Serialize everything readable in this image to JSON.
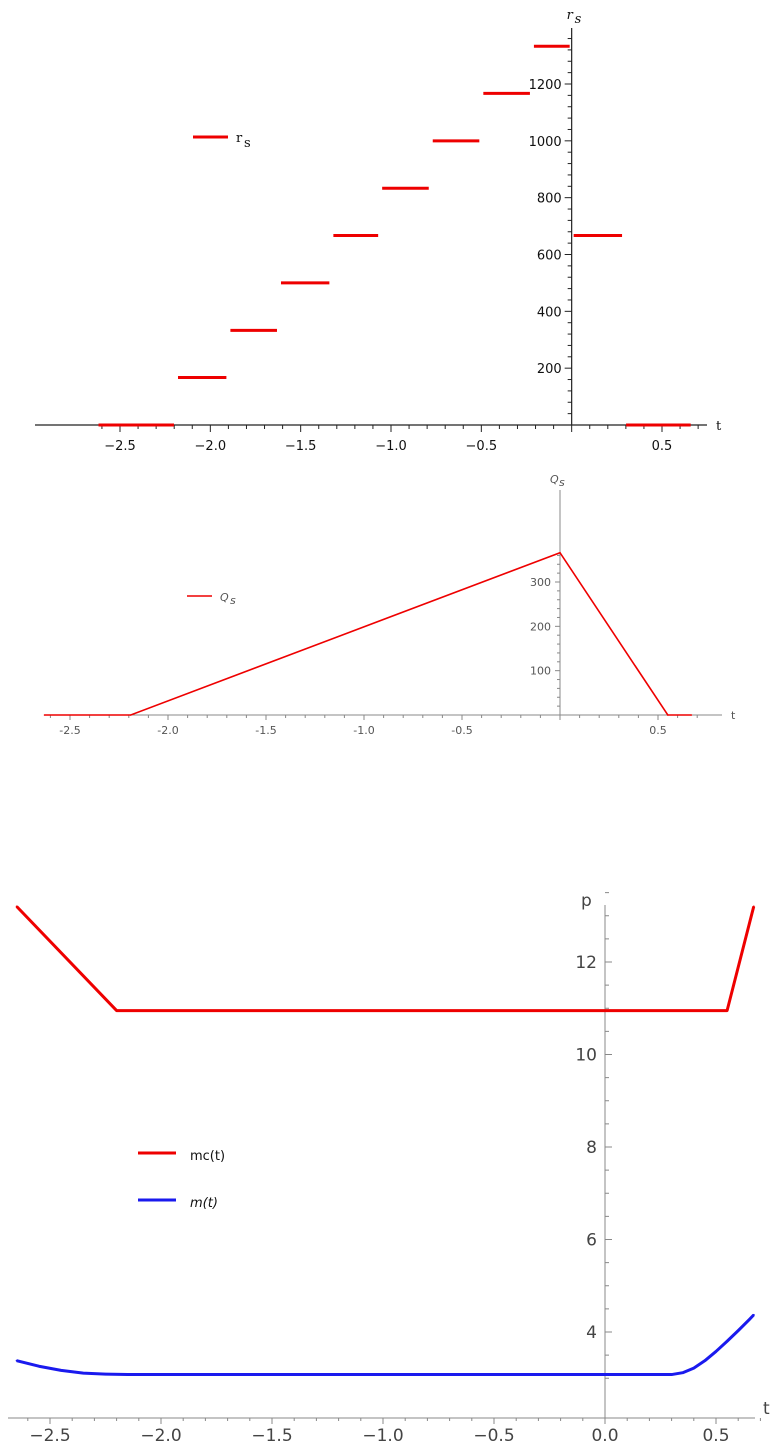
{
  "chart_data": [
    {
      "type": "line",
      "style": "step",
      "xlabel": "t",
      "ylabel": "r",
      "ylabel_sub": "s",
      "legend": [
        {
          "name": "r",
          "sub": "s",
          "color": "#ee0000"
        }
      ],
      "legend_placement": "top-left",
      "xlim": [
        -2.65,
        0.72
      ],
      "ylim": [
        0,
        1380
      ],
      "x_ticks": [
        -2.5,
        -2.0,
        -1.5,
        -1.0,
        -0.5,
        0.5
      ],
      "x_tick_labels": [
        "−2.5",
        "−2.0",
        "−1.5",
        "−1.0",
        "−0.5",
        "0.5"
      ],
      "y_ticks": [
        200,
        400,
        600,
        800,
        1000,
        1200
      ],
      "y_tick_labels": [
        "200",
        "400",
        "600",
        "800",
        "1000",
        "1200"
      ],
      "series": [
        {
          "color": "#ee0000",
          "segments": [
            {
              "x0": -2.63,
              "x1": -2.19,
              "y": 0
            },
            {
              "x0": -2.19,
              "x1": -1.9,
              "y": 167
            },
            {
              "x0": -1.9,
              "x1": -1.62,
              "y": 333
            },
            {
              "x0": -1.62,
              "x1": -1.33,
              "y": 500
            },
            {
              "x0": -1.33,
              "x1": -1.06,
              "y": 667
            },
            {
              "x0": -1.06,
              "x1": -0.78,
              "y": 833
            },
            {
              "x0": -0.78,
              "x1": -0.5,
              "y": 1000
            },
            {
              "x0": -0.5,
              "x1": -0.22,
              "y": 1167
            },
            {
              "x0": -0.22,
              "x1": 0.0,
              "y": 1333
            },
            {
              "x0": 0.0,
              "x1": 0.29,
              "y": 667
            },
            {
              "x0": 0.29,
              "x1": 0.67,
              "y": 0
            }
          ]
        }
      ]
    },
    {
      "type": "line",
      "xlabel": "t",
      "ylabel": "Q",
      "ylabel_sub": "s",
      "legend": [
        {
          "name": "Q",
          "sub": "s",
          "color": "#ee0000"
        }
      ],
      "legend_placement": "top-left",
      "xlim": [
        -2.72,
        0.78
      ],
      "ylim": [
        0,
        380
      ],
      "x_ticks": [
        -2.5,
        -2.0,
        -1.5,
        -1.0,
        -0.5,
        0.5
      ],
      "x_tick_labels": [
        "-2.5",
        "-2.0",
        "-1.5",
        "-1.0",
        "-0.5",
        "0.5"
      ],
      "y_ticks": [
        100,
        200,
        300
      ],
      "y_tick_labels": [
        "100",
        "200",
        "300"
      ],
      "series": [
        {
          "color": "#ee0000",
          "x": [
            -2.63,
            -2.19,
            0.0,
            0.55,
            0.67
          ],
          "y": [
            0,
            0,
            366,
            0,
            0
          ]
        }
      ]
    },
    {
      "type": "line",
      "xlabel": "t",
      "ylabel": "p",
      "legend": [
        {
          "name": "mc(t)",
          "color": "#ee0000"
        },
        {
          "name": "m(t)",
          "color": "#1a1aee"
        }
      ],
      "legend_placement": "center-left",
      "xlim": [
        -2.65,
        0.72
      ],
      "ylim": [
        2.75,
        13.6
      ],
      "x_ticks": [
        -2.5,
        -2.0,
        -1.5,
        -1.0,
        -0.5,
        0.0,
        0.5
      ],
      "x_tick_labels": [
        "−2.5",
        "−2.0",
        "−1.5",
        "−1.0",
        "−0.5",
        "0.0",
        "0.5"
      ],
      "y_ticks": [
        4,
        6,
        8,
        10,
        12
      ],
      "y_tick_labels": [
        "4",
        "6",
        "8",
        "10",
        "12"
      ],
      "series": [
        {
          "name": "mc(t)",
          "color": "#ee0000",
          "x": [
            -2.65,
            -2.2,
            0.55,
            0.67
          ],
          "y": [
            13.2,
            10.95,
            10.95,
            13.2
          ]
        },
        {
          "name": "m(t)",
          "color": "#1a1aee",
          "x": [
            -2.65,
            -2.55,
            -2.45,
            -2.35,
            -2.25,
            -2.15,
            0.3,
            0.35,
            0.4,
            0.45,
            0.5,
            0.55,
            0.6,
            0.65,
            0.67
          ],
          "y": [
            3.38,
            3.26,
            3.17,
            3.11,
            3.09,
            3.08,
            3.08,
            3.12,
            3.22,
            3.38,
            3.58,
            3.8,
            4.03,
            4.27,
            4.37
          ]
        }
      ]
    }
  ]
}
